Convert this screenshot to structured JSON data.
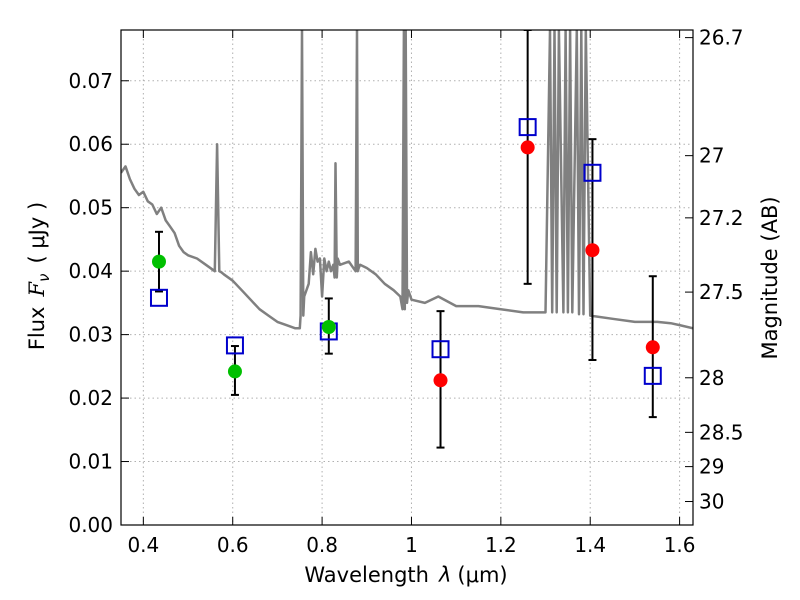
{
  "chart_data": {
    "type": "scatter",
    "xlabel_text": "Wavelength",
    "xlabel_symbol": "λ",
    "xlabel_unit": "(μm)",
    "ylabel_text": "Flux",
    "ylabel_symbol": "F",
    "ylabel_subscript": "ν",
    "ylabel_unit": "( μJy )",
    "y2label": "Magnitude (AB)",
    "xlim": [
      0.35,
      1.63
    ],
    "ylim": [
      0.0,
      0.078
    ],
    "grid": true,
    "x_ticks": [
      0.4,
      0.6,
      0.8,
      1.0,
      1.2,
      1.4,
      1.6
    ],
    "x_tick_labels": [
      "0.4",
      "0.6",
      "0.8",
      "1",
      "1.2",
      "1.4",
      "1.6"
    ],
    "y_ticks": [
      0.0,
      0.01,
      0.02,
      0.03,
      0.04,
      0.05,
      0.06,
      0.07
    ],
    "y_tick_labels": [
      "0.00",
      "0.01",
      "0.02",
      "0.03",
      "0.04",
      "0.05",
      "0.06",
      "0.07"
    ],
    "y2_ticks": [
      {
        "label": "26.7",
        "flux": 0.0768
      },
      {
        "label": "27",
        "flux": 0.0582
      },
      {
        "label": "27.2",
        "flux": 0.0484
      },
      {
        "label": "27.5",
        "flux": 0.0367
      },
      {
        "label": "28",
        "flux": 0.0232
      },
      {
        "label": "28.5",
        "flux": 0.0146
      },
      {
        "label": "29",
        "flux": 0.0092
      },
      {
        "label": "30",
        "flux": 0.0037
      }
    ],
    "colors": {
      "template": "#808080",
      "measured_optical": "#00c000",
      "measured_infrared": "#ff0000",
      "model": "#0000cc",
      "errorbar": "#000000",
      "grid": "#b0b0b0"
    },
    "series": [
      {
        "kind": "template-spectrum",
        "x": [
          0.35,
          0.36,
          0.37,
          0.38,
          0.39,
          0.4,
          0.41,
          0.42,
          0.43,
          0.44,
          0.45,
          0.46,
          0.47,
          0.48,
          0.49,
          0.5,
          0.52,
          0.54,
          0.56,
          0.565,
          0.57,
          0.575,
          0.58,
          0.6,
          0.62,
          0.64,
          0.66,
          0.68,
          0.7,
          0.72,
          0.74,
          0.75,
          0.752,
          0.755,
          0.758,
          0.76,
          0.77,
          0.775,
          0.78,
          0.785,
          0.79,
          0.795,
          0.8,
          0.805,
          0.81,
          0.815,
          0.82,
          0.825,
          0.828,
          0.83,
          0.833,
          0.835,
          0.84,
          0.86,
          0.875,
          0.878,
          0.88,
          0.882,
          0.885,
          0.9,
          0.92,
          0.94,
          0.96,
          0.975,
          0.98,
          0.983,
          0.985,
          0.987,
          0.99,
          0.993,
          1.0,
          1.03,
          1.06,
          1.1,
          1.15,
          1.2,
          1.25,
          1.3,
          1.31,
          1.315,
          1.32,
          1.325,
          1.33,
          1.34,
          1.345,
          1.35,
          1.355,
          1.36,
          1.37,
          1.375,
          1.38,
          1.385,
          1.39,
          1.4,
          1.45,
          1.5,
          1.55,
          1.58,
          1.6,
          1.63
        ],
        "y": [
          0.0555,
          0.0565,
          0.0545,
          0.053,
          0.052,
          0.0525,
          0.051,
          0.0505,
          0.049,
          0.05,
          0.048,
          0.047,
          0.046,
          0.044,
          0.043,
          0.0425,
          0.042,
          0.041,
          0.04,
          0.06,
          0.04,
          0.0398,
          0.0395,
          0.0385,
          0.037,
          0.0355,
          0.034,
          0.033,
          0.032,
          0.0315,
          0.031,
          0.031,
          0.033,
          0.078,
          0.033,
          0.036,
          0.038,
          0.043,
          0.0395,
          0.0435,
          0.0415,
          0.042,
          0.036,
          0.042,
          0.04,
          0.0415,
          0.04,
          0.041,
          0.039,
          0.057,
          0.039,
          0.042,
          0.041,
          0.0415,
          0.04,
          0.078,
          0.04,
          0.0405,
          0.041,
          0.0405,
          0.0395,
          0.038,
          0.037,
          0.036,
          0.034,
          0.078,
          0.034,
          0.078,
          0.035,
          0.037,
          0.0355,
          0.035,
          0.036,
          0.0345,
          0.0345,
          0.034,
          0.0335,
          0.0335,
          0.078,
          0.0335,
          0.078,
          0.0335,
          0.078,
          0.0335,
          0.078,
          0.0335,
          0.078,
          0.0335,
          0.078,
          0.0332,
          0.078,
          0.0332,
          0.078,
          0.033,
          0.0325,
          0.032,
          0.032,
          0.0318,
          0.0315,
          0.031
        ]
      },
      {
        "kind": "measured",
        "x": [
          0.435,
          0.605,
          0.815,
          1.065,
          1.26,
          1.405,
          1.54
        ],
        "values": [
          0.0415,
          0.0242,
          0.0312,
          0.0228,
          0.0595,
          0.0433,
          0.028
        ],
        "err_low": [
          0.0368,
          0.0205,
          0.027,
          0.0122,
          0.038,
          0.026,
          0.017
        ],
        "err_high": [
          0.0462,
          0.0282,
          0.0357,
          0.0337,
          0.078,
          0.0608,
          0.0392
        ],
        "color_keys": [
          "measured_optical",
          "measured_optical",
          "measured_optical",
          "measured_infrared",
          "measured_infrared",
          "measured_infrared",
          "measured_infrared"
        ]
      },
      {
        "kind": "model",
        "x": [
          0.435,
          0.605,
          0.815,
          1.065,
          1.26,
          1.405,
          1.54
        ],
        "values": [
          0.0358,
          0.0283,
          0.0305,
          0.0277,
          0.0627,
          0.0555,
          0.0235
        ]
      }
    ]
  }
}
